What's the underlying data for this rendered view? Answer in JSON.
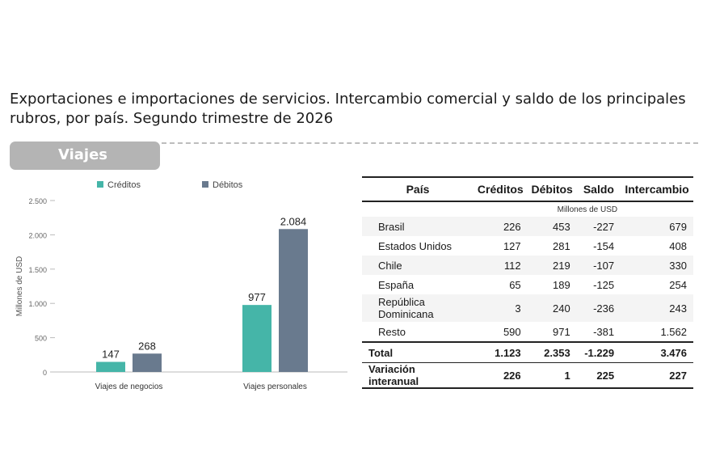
{
  "header": {
    "title": "Exportaciones e importaciones de servicios. Intercambio comercial y saldo de los principales rubros, por país. Segundo trimestre de 2026",
    "section_label": "Viajes"
  },
  "colors": {
    "creditos": "#45b5a8",
    "debitos": "#697a8e",
    "tab": "#b4b4b4"
  },
  "chart_data": {
    "type": "bar",
    "categories": [
      "Viajes de negocios",
      "Viajes personales"
    ],
    "series": [
      {
        "name": "Créditos",
        "values": [
          147,
          977
        ]
      },
      {
        "name": "Débitos",
        "values": [
          268,
          2084
        ]
      }
    ],
    "ylabel": "Millones de USD",
    "ylim": [
      0,
      2500
    ],
    "yticks": [
      0,
      500,
      1000,
      1500,
      2000,
      2500
    ],
    "ytick_labels": [
      "0",
      "500",
      "1.000",
      "1.500",
      "2.000",
      "2.500"
    ],
    "data_labels": [
      [
        "147",
        "977"
      ],
      [
        "268",
        "2.084"
      ]
    ],
    "legend_position": "top",
    "grid": false
  },
  "table": {
    "headers": [
      "País",
      "Créditos",
      "Débitos",
      "Saldo",
      "Intercambio"
    ],
    "unit": "Millones de USD",
    "rows": [
      [
        "Brasil",
        "226",
        "453",
        "-227",
        "679"
      ],
      [
        "Estados Unidos",
        "127",
        "281",
        "-154",
        "408"
      ],
      [
        "Chile",
        "112",
        "219",
        "-107",
        "330"
      ],
      [
        "España",
        "65",
        "189",
        "-125",
        "254"
      ],
      [
        "República Dominicana",
        "3",
        "240",
        "-236",
        "243"
      ],
      [
        "Resto",
        "590",
        "971",
        "-381",
        "1.562"
      ]
    ],
    "total": [
      "Total",
      "1.123",
      "2.353",
      "-1.229",
      "3.476"
    ],
    "variation": [
      "Variación interanual",
      "226",
      "1",
      "225",
      "227"
    ]
  }
}
